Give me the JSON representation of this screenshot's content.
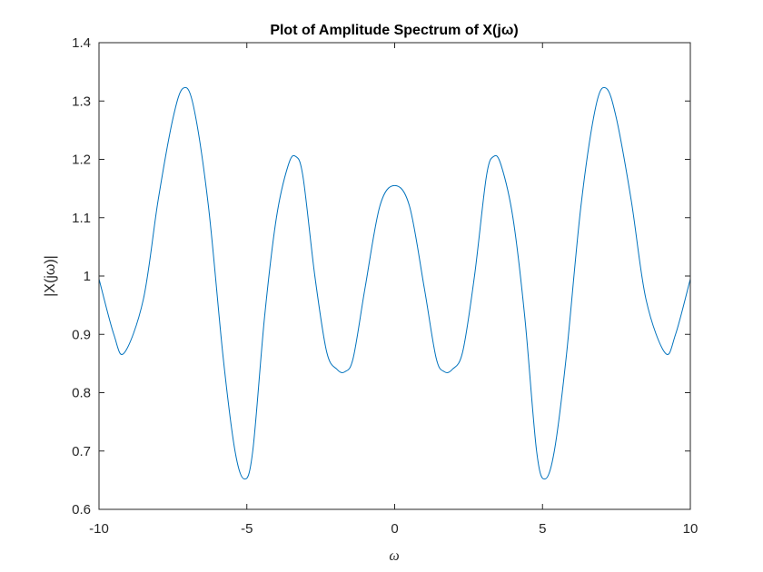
{
  "chart_data": {
    "type": "line",
    "title": "Plot of Amplitude Spectrum of X(jω)",
    "xlabel": "ω",
    "ylabel": "|X(jω)|",
    "xlim": [
      -10,
      10
    ],
    "ylim": [
      0.6,
      1.4
    ],
    "xticks": [
      -10,
      -5,
      0,
      5,
      10
    ],
    "xtick_labels": [
      "-10",
      "-5",
      "0",
      "5",
      "10"
    ],
    "yticks": [
      0.6,
      0.7,
      0.8,
      0.9,
      1.0,
      1.1,
      1.2,
      1.3,
      1.4
    ],
    "ytick_labels": [
      "0.6",
      "0.7",
      "0.8",
      "0.9",
      "1",
      "1.1",
      "1.2",
      "1.3",
      "1.4"
    ],
    "grid": false,
    "series": [
      {
        "color": "#0072BD",
        "x": [
          -10,
          -9.5,
          -9.15,
          -8.5,
          -8,
          -7.5,
          -7.15,
          -6.8,
          -6.3,
          -5.8,
          -5.4,
          -5.08,
          -4.8,
          -4.4,
          -4,
          -3.6,
          -3.35,
          -3.1,
          -2.7,
          -2.3,
          -1.95,
          -1.68,
          -1.4,
          -1.0,
          -0.5,
          0,
          0.5,
          1.0,
          1.4,
          1.68,
          1.95,
          2.3,
          2.7,
          3.1,
          3.35,
          3.6,
          4,
          4.4,
          4.8,
          5.08,
          5.4,
          5.8,
          6.3,
          6.8,
          7.15,
          7.5,
          8,
          8.5,
          9.15,
          9.5,
          10
        ],
        "y": [
          0.995,
          0.9,
          0.868,
          0.96,
          1.13,
          1.27,
          1.322,
          1.29,
          1.12,
          0.86,
          0.7,
          0.652,
          0.7,
          0.93,
          1.1,
          1.19,
          1.205,
          1.17,
          1.0,
          0.87,
          0.84,
          0.836,
          0.86,
          0.98,
          1.12,
          1.155,
          1.12,
          0.98,
          0.86,
          0.836,
          0.84,
          0.87,
          1.0,
          1.17,
          1.205,
          1.19,
          1.1,
          0.93,
          0.7,
          0.652,
          0.7,
          0.86,
          1.12,
          1.29,
          1.322,
          1.27,
          1.13,
          0.96,
          0.868,
          0.9,
          0.995
        ]
      }
    ]
  }
}
